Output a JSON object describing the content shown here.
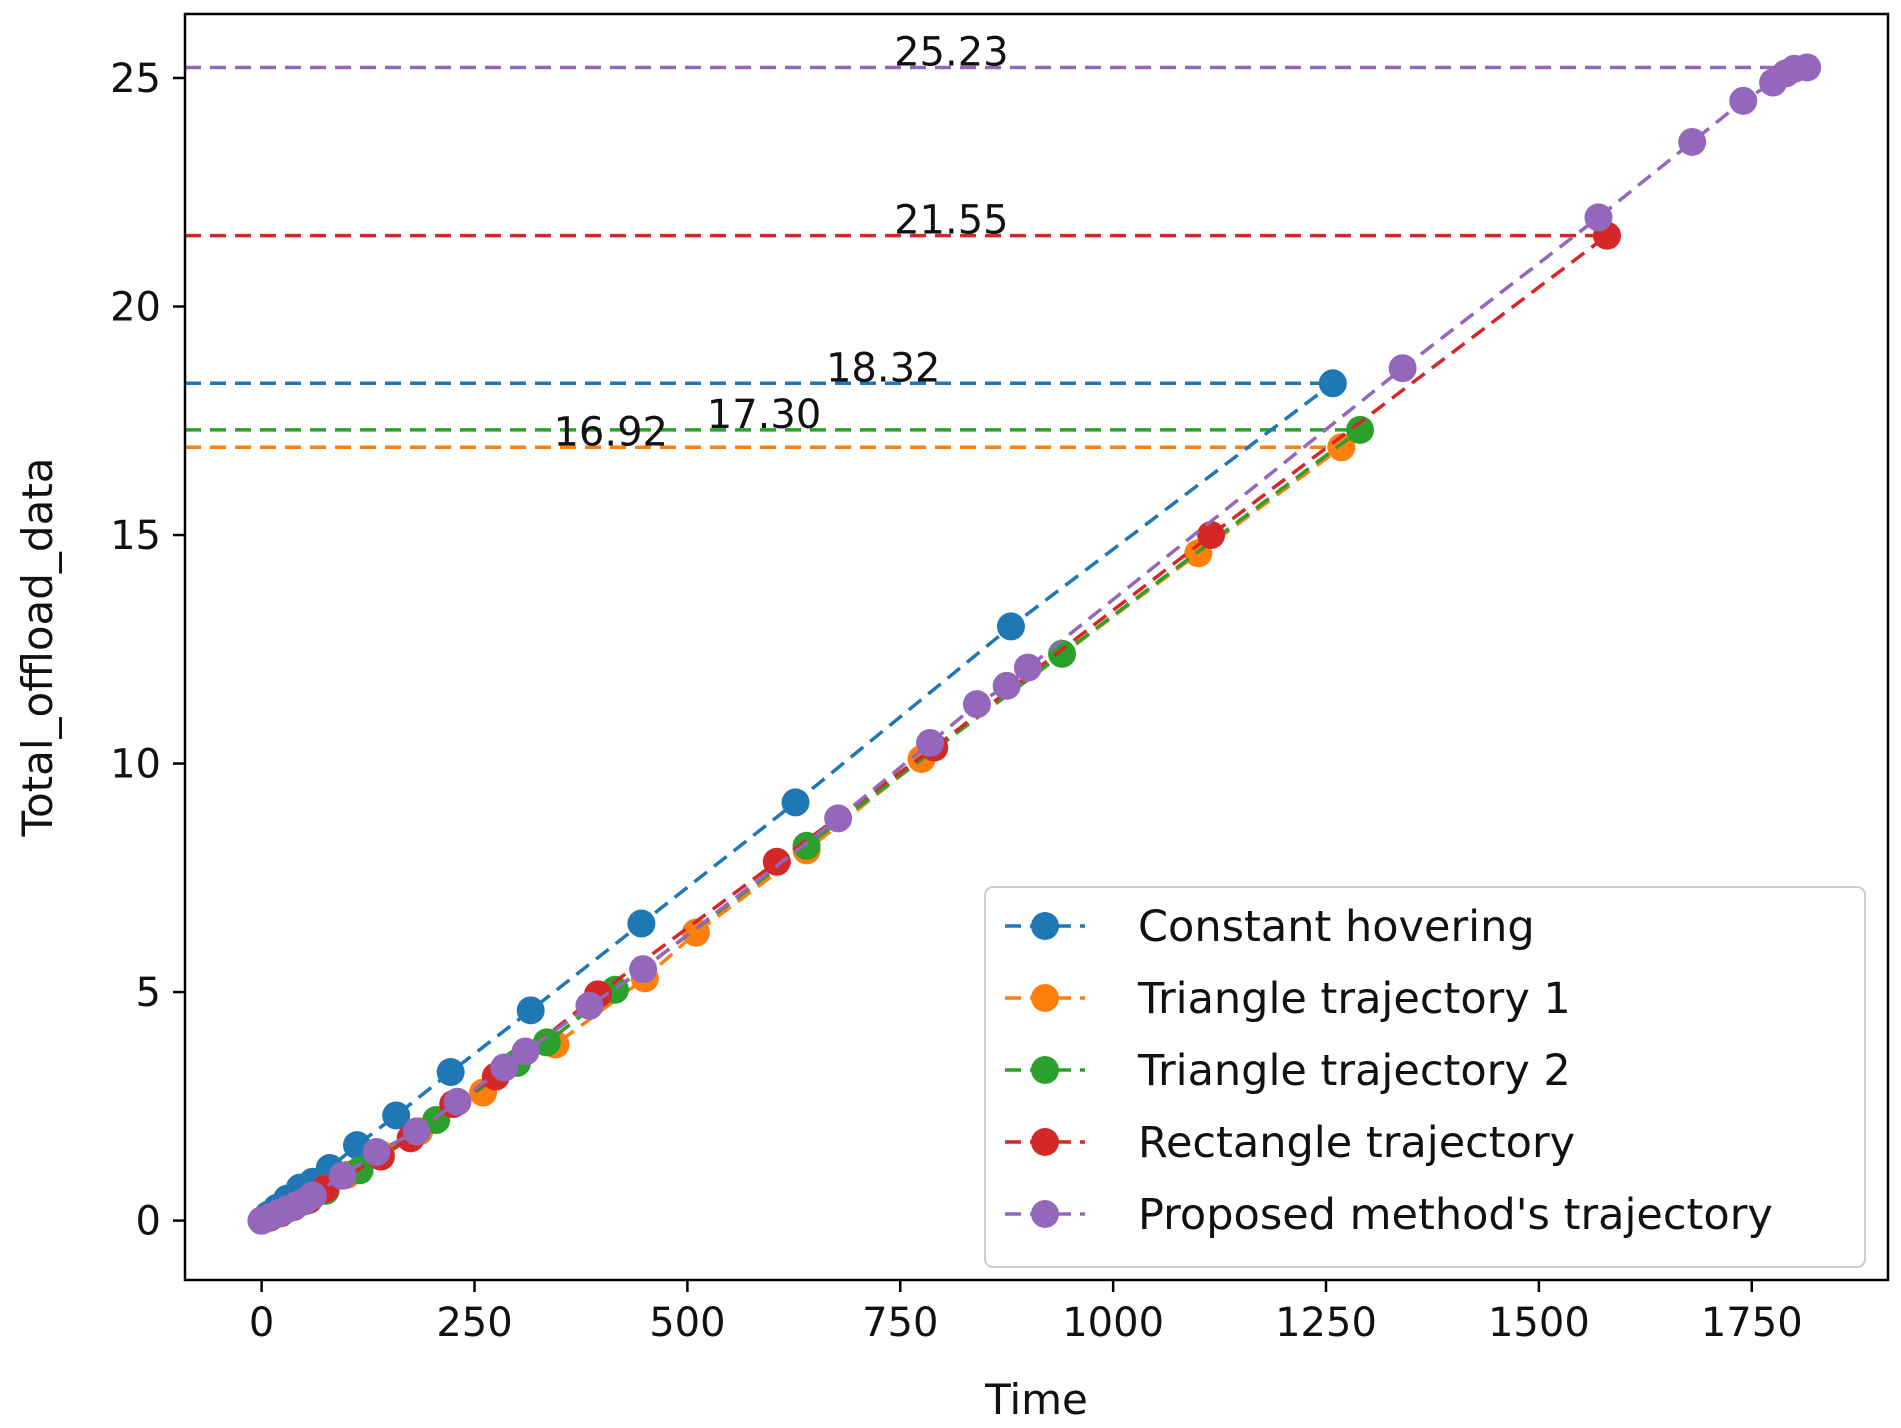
{
  "chart_data": {
    "type": "line",
    "title": "",
    "xlabel": "Time",
    "ylabel": "Total_offload_data",
    "xlim": [
      -90,
      1910
    ],
    "ylim": [
      -1.3,
      26.4
    ],
    "xticks": [
      0,
      250,
      500,
      750,
      1000,
      1250,
      1500,
      1750
    ],
    "yticks": [
      0,
      5,
      10,
      15,
      20,
      25
    ],
    "grid": false,
    "legend_position": "lower-right",
    "line_style": "dashed",
    "marker": "circle",
    "series": [
      {
        "name": "Constant hovering",
        "color": "#1f77b4",
        "points": [
          [
            0,
            0
          ],
          [
            8,
            0.13
          ],
          [
            18,
            0.28
          ],
          [
            30,
            0.48
          ],
          [
            45,
            0.72
          ],
          [
            60,
            0.85
          ],
          [
            80,
            1.15
          ],
          [
            112,
            1.65
          ],
          [
            158,
            2.3
          ],
          [
            222,
            3.25
          ],
          [
            316,
            4.6
          ],
          [
            446,
            6.5
          ],
          [
            627,
            9.15
          ],
          [
            880,
            13.0
          ],
          [
            1258,
            18.32
          ]
        ]
      },
      {
        "name": "Triangle trajectory 1",
        "color": "#ff7f0e",
        "points": [
          [
            0,
            0
          ],
          [
            10,
            0.07
          ],
          [
            22,
            0.16
          ],
          [
            38,
            0.3
          ],
          [
            55,
            0.45
          ],
          [
            75,
            0.7
          ],
          [
            100,
            1.0
          ],
          [
            140,
            1.45
          ],
          [
            185,
            1.95
          ],
          [
            260,
            2.8
          ],
          [
            345,
            3.85
          ],
          [
            450,
            5.3
          ],
          [
            510,
            6.3
          ],
          [
            640,
            8.1
          ],
          [
            775,
            10.1
          ],
          [
            1100,
            14.6
          ],
          [
            1268,
            16.92
          ]
        ]
      },
      {
        "name": "Triangle trajectory 2",
        "color": "#2ca02c",
        "points": [
          [
            0,
            0
          ],
          [
            10,
            0.07
          ],
          [
            22,
            0.16
          ],
          [
            38,
            0.3
          ],
          [
            55,
            0.45
          ],
          [
            75,
            0.65
          ],
          [
            115,
            1.1
          ],
          [
            205,
            2.2
          ],
          [
            300,
            3.45
          ],
          [
            335,
            3.9
          ],
          [
            415,
            5.05
          ],
          [
            640,
            8.2
          ],
          [
            940,
            12.4
          ],
          [
            1290,
            17.3
          ]
        ]
      },
      {
        "name": "Rectangle trajectory",
        "color": "#d62728",
        "points": [
          [
            0,
            0
          ],
          [
            10,
            0.07
          ],
          [
            22,
            0.16
          ],
          [
            38,
            0.3
          ],
          [
            55,
            0.45
          ],
          [
            75,
            0.7
          ],
          [
            140,
            1.4
          ],
          [
            175,
            1.8
          ],
          [
            225,
            2.55
          ],
          [
            275,
            3.15
          ],
          [
            395,
            4.95
          ],
          [
            605,
            7.85
          ],
          [
            790,
            10.35
          ],
          [
            1115,
            15.0
          ],
          [
            1580,
            21.55
          ]
        ]
      },
      {
        "name": "Proposed method's trajectory",
        "color": "#9467bd",
        "points": [
          [
            0,
            0
          ],
          [
            10,
            0.08
          ],
          [
            20,
            0.16
          ],
          [
            30,
            0.25
          ],
          [
            40,
            0.33
          ],
          [
            50,
            0.42
          ],
          [
            60,
            0.55
          ],
          [
            95,
            0.98
          ],
          [
            135,
            1.5
          ],
          [
            182,
            1.95
          ],
          [
            230,
            2.6
          ],
          [
            285,
            3.35
          ],
          [
            310,
            3.7
          ],
          [
            385,
            4.7
          ],
          [
            448,
            5.5
          ],
          [
            677,
            8.8
          ],
          [
            785,
            10.45
          ],
          [
            840,
            11.3
          ],
          [
            875,
            11.7
          ],
          [
            900,
            12.1
          ],
          [
            1340,
            18.65
          ],
          [
            1570,
            21.95
          ],
          [
            1680,
            23.6
          ],
          [
            1740,
            24.5
          ],
          [
            1775,
            24.9
          ],
          [
            1790,
            25.1
          ],
          [
            1800,
            25.2
          ],
          [
            1815,
            25.23
          ]
        ]
      }
    ],
    "reference_lines": [
      {
        "value": 25.23,
        "label": "25.23",
        "color": "#9467bd",
        "x_end": 1815,
        "label_x": 810
      },
      {
        "value": 21.55,
        "label": "21.55",
        "color": "#d62728",
        "x_end": 1580,
        "label_x": 810
      },
      {
        "value": 18.32,
        "label": "18.32",
        "color": "#1f77b4",
        "x_end": 1258,
        "label_x": 730
      },
      {
        "value": 17.3,
        "label": "17.30",
        "color": "#2ca02c",
        "x_end": 1290,
        "label_x": 590
      },
      {
        "value": 16.92,
        "label": "16.92",
        "color": "#ff7f0e",
        "x_end": 1268,
        "label_x": 410
      }
    ]
  }
}
